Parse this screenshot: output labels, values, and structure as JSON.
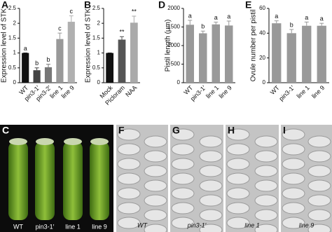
{
  "chart_data": [
    {
      "type": "bar",
      "panel": "A",
      "y_label": "Expression level of STK",
      "categories": [
        "WT",
        "pin3-1′",
        "pin3-2′",
        "line 1",
        "line 9"
      ],
      "values": [
        1.0,
        0.42,
        0.52,
        1.47,
        2.05
      ],
      "errors": [
        0,
        0.08,
        0.1,
        0.2,
        0.2
      ],
      "annotations": [
        "a",
        "b",
        "b",
        "c",
        "c"
      ],
      "colors": [
        "#111111",
        "#444444",
        "#777777",
        "#999999",
        "#b0b0b0"
      ],
      "ylim": [
        0,
        2.5
      ],
      "yticks": [
        0,
        0.5,
        1,
        1.5,
        2,
        2.5
      ]
    },
    {
      "type": "bar",
      "panel": "B",
      "y_label": "Expression level of STK",
      "categories": [
        "Mock",
        "Picloram",
        "NAA"
      ],
      "values": [
        1.0,
        1.45,
        2.02
      ],
      "errors": [
        0,
        0.1,
        0.22
      ],
      "annotations": [
        null,
        "**",
        "**"
      ],
      "colors": [
        "#111111",
        "#555555",
        "#aaaaaa"
      ],
      "ylim": [
        0,
        2.5
      ],
      "yticks": [
        0,
        0.5,
        1,
        1.5,
        2,
        2.5
      ]
    },
    {
      "type": "bar",
      "panel": "D",
      "y_label": "Pistil length (μm)",
      "categories": [
        "WT",
        "pin3-1′",
        "line 1",
        "line 9"
      ],
      "values": [
        1560,
        1330,
        1570,
        1540
      ],
      "errors": [
        120,
        60,
        60,
        120
      ],
      "annotations": [
        "a",
        "b",
        "a",
        "a"
      ],
      "colors": [
        "#999999",
        "#999999",
        "#999999",
        "#999999"
      ],
      "ylim": [
        0,
        2000
      ],
      "yticks": [
        0,
        500,
        1000,
        1500,
        2000
      ]
    },
    {
      "type": "bar",
      "panel": "E",
      "y_label": "Ovule number per pistil",
      "categories": [
        "WT",
        "pin3-1′",
        "line 1",
        "line 9"
      ],
      "values": [
        48,
        40,
        46,
        46
      ],
      "errors": [
        2,
        3,
        3,
        2
      ],
      "annotations": [
        "a",
        "b",
        "a",
        "a"
      ],
      "colors": [
        "#999999",
        "#999999",
        "#999999",
        "#999999"
      ],
      "ylim": [
        0,
        60
      ],
      "yticks": [
        0,
        20,
        40,
        60
      ]
    }
  ],
  "images": [
    {
      "panel": "C",
      "labels": [
        "WT",
        "pin3-1′",
        "line 1",
        "line 9"
      ]
    },
    {
      "panel": "F",
      "labels": [
        "WT"
      ]
    },
    {
      "panel": "G",
      "labels": [
        "pin3-1′"
      ]
    },
    {
      "panel": "H",
      "labels": [
        "line 1"
      ]
    },
    {
      "panel": "I",
      "labels": [
        "line 9"
      ]
    }
  ]
}
